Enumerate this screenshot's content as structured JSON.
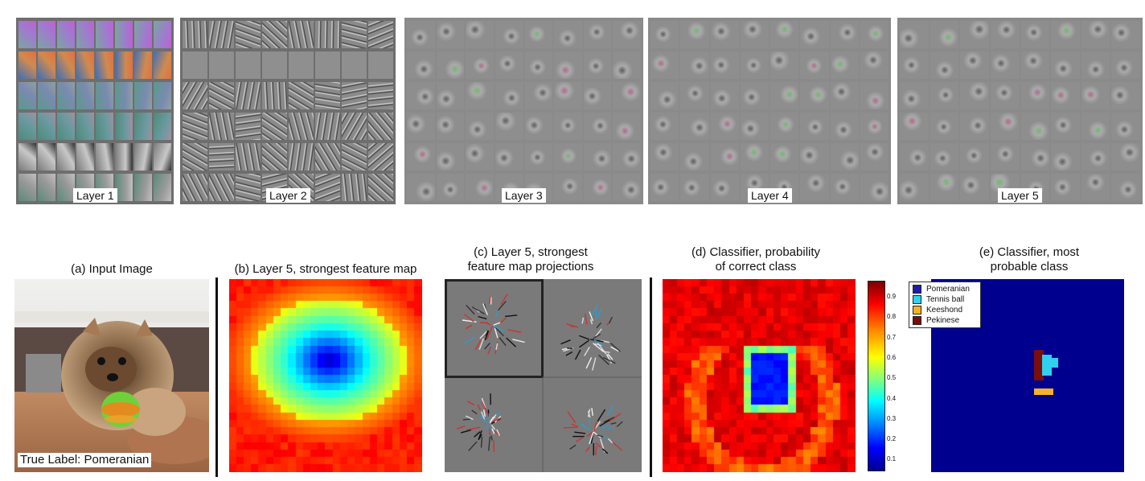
{
  "top_panels": [
    {
      "label": "Layer 1",
      "style": "color"
    },
    {
      "label": "Layer 2",
      "style": "edges"
    },
    {
      "label": "Layer 3",
      "style": "texture"
    },
    {
      "label": "Layer 4",
      "style": "parts"
    },
    {
      "label": "Layer 5",
      "style": "objects"
    }
  ],
  "captions": {
    "a": "(a) Input Image",
    "b": "(b) Layer 5, strongest feature map",
    "c_line1": "(c) Layer 5, strongest",
    "c_line2": "feature map projections",
    "d_line1": "(d) Classifier, probability",
    "d_line2": "of correct class",
    "e_line1": "(e) Classifier, most",
    "e_line2": "probable class"
  },
  "true_label": "True Label: Pomeranian",
  "colorbar": {
    "ticks": [
      "0.9",
      "0.8",
      "0.7",
      "0.6",
      "0.5",
      "0.4",
      "0.3",
      "0.2",
      "0.1"
    ]
  },
  "legend": [
    {
      "name": "Pomeranian",
      "color": "#1c1ca8"
    },
    {
      "name": "Tennis ball",
      "color": "#2fd0f0"
    },
    {
      "name": "Keeshond",
      "color": "#f5b324"
    },
    {
      "name": "Pekinese",
      "color": "#7a0d0d"
    }
  ],
  "colors": {
    "background_blue": "#00008f",
    "grid_gray": "#6e6e6e",
    "gray_square": "#8a8a8a"
  }
}
